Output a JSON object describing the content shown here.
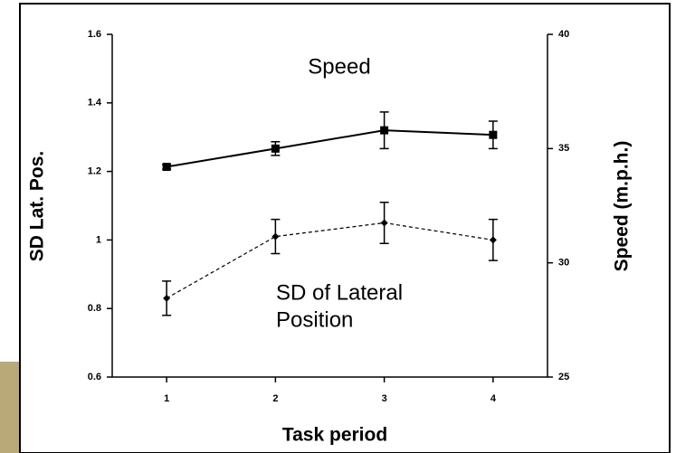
{
  "chart_data": {
    "type": "line",
    "x_label": "Task period",
    "y_label": "SD Lat. Pos.",
    "y2_label": "Speed (m.p.h.)",
    "annotations": [
      "Speed",
      "SD of Lateral",
      "Position"
    ],
    "x": [
      1,
      2,
      3,
      4
    ],
    "xlim": [
      0.5,
      4.5
    ],
    "xticks": [
      1,
      2,
      3,
      4
    ],
    "ylim": [
      0.6,
      1.6
    ],
    "yticks": [
      0.6,
      0.8,
      1,
      1.2,
      1.4,
      1.6
    ],
    "y2lim": [
      25,
      40
    ],
    "y2ticks": [
      25,
      30,
      35,
      40
    ],
    "series": [
      {
        "axis": "y2",
        "color": "#000000",
        "dash": false,
        "marker": "square",
        "values": [
          34.2,
          35.0,
          35.8,
          35.6
        ],
        "errors": [
          0.1,
          0.3,
          0.8,
          0.6
        ]
      },
      {
        "color": "#000000",
        "dash": true,
        "marker": "diamond",
        "values": [
          0.83,
          1.01,
          1.05,
          1.0
        ],
        "errors": [
          0.05,
          0.05,
          0.06,
          0.06
        ]
      }
    ]
  }
}
